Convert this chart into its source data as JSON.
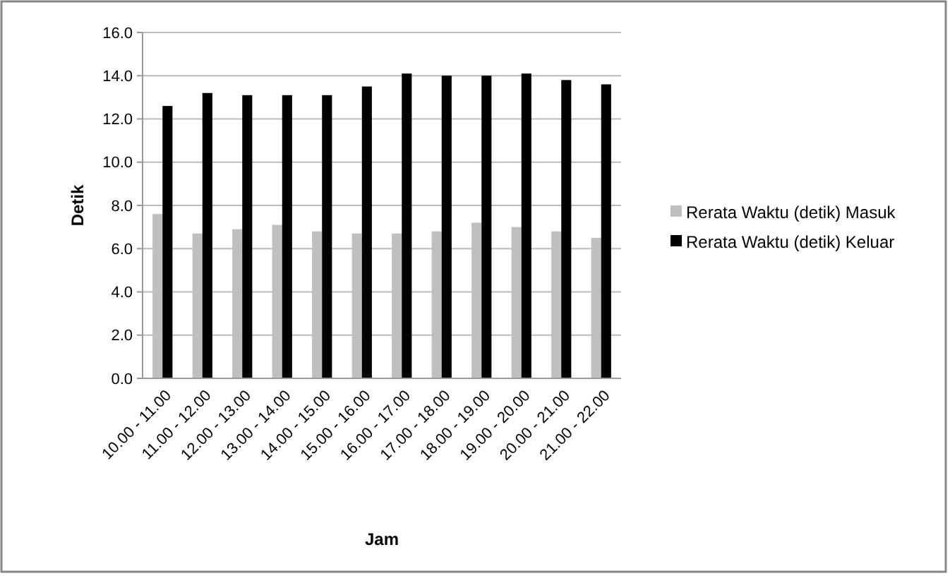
{
  "chart_data": {
    "type": "bar",
    "xlabel": "Jam",
    "ylabel": "Detik",
    "categories": [
      "10.00 - 11.00",
      "11.00 - 12.00",
      "12.00 - 13.00",
      "13.00 - 14.00",
      "14.00 - 15.00",
      "15.00 - 16.00",
      "16.00 - 17.00",
      "17.00 - 18.00",
      "18.00 - 19.00",
      "19.00 - 20.00",
      "20.00 - 21.00",
      "21.00 - 22.00"
    ],
    "series": [
      {
        "name": "Rerata Waktu (detik) Masuk",
        "color": "#bfbfbf",
        "values": [
          7.6,
          6.7,
          6.9,
          7.1,
          6.8,
          6.7,
          6.7,
          6.8,
          7.2,
          7.0,
          6.8,
          6.5
        ]
      },
      {
        "name": "Rerata Waktu (detik) Keluar",
        "color": "#000000",
        "values": [
          12.6,
          13.2,
          13.1,
          13.1,
          13.1,
          13.5,
          14.1,
          14.0,
          14.0,
          14.1,
          13.8,
          13.6
        ]
      }
    ],
    "ylim": [
      0,
      16
    ],
    "yticks": [
      {
        "value": 0,
        "label": "0.0"
      },
      {
        "value": 2,
        "label": "2.0"
      },
      {
        "value": 4,
        "label": "4.0"
      },
      {
        "value": 6,
        "label": "6.0"
      },
      {
        "value": 8,
        "label": "8.0"
      },
      {
        "value": 10,
        "label": "10.0"
      },
      {
        "value": 12,
        "label": "12.0"
      },
      {
        "value": 14,
        "label": "14.0"
      },
      {
        "value": 16,
        "label": "16.0"
      }
    ],
    "grid": "y",
    "legend": "right"
  }
}
